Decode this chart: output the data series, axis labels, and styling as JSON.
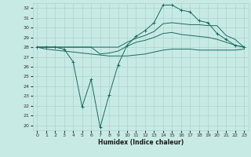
{
  "title": "",
  "xlabel": "Humidex (Indice chaleur)",
  "ylabel": "",
  "background_color": "#c8eae4",
  "grid_color": "#aad4ce",
  "line_color": "#1a6b60",
  "ylim": [
    19.5,
    32.5
  ],
  "xlim": [
    -0.5,
    23.5
  ],
  "yticks": [
    20,
    21,
    22,
    23,
    24,
    25,
    26,
    27,
    28,
    29,
    30,
    31,
    32
  ],
  "xticks": [
    0,
    1,
    2,
    3,
    4,
    5,
    6,
    7,
    8,
    9,
    10,
    11,
    12,
    13,
    14,
    15,
    16,
    17,
    18,
    19,
    20,
    21,
    22,
    23
  ],
  "curves": [
    {
      "x": [
        0,
        1,
        2,
        3,
        4,
        5,
        6,
        7,
        8,
        9,
        10,
        11,
        12,
        13,
        14,
        15,
        16,
        17,
        18,
        19,
        20,
        21,
        22,
        23
      ],
      "y": [
        28,
        28,
        28,
        27.8,
        26.5,
        21.9,
        24.7,
        19.8,
        23.1,
        26.2,
        28.2,
        29.1,
        29.7,
        30.5,
        32.3,
        32.3,
        31.8,
        31.6,
        30.7,
        30.5,
        29.4,
        28.8,
        28.2,
        28.0
      ],
      "marker": "+"
    },
    {
      "x": [
        0,
        1,
        2,
        3,
        4,
        5,
        6,
        7,
        8,
        9,
        10,
        11,
        12,
        13,
        14,
        15,
        16,
        17,
        18,
        19,
        20,
        21,
        22,
        23
      ],
      "y": [
        28,
        28,
        28,
        28,
        28,
        28,
        28,
        27.3,
        27.4,
        27.6,
        28.1,
        28.5,
        28.7,
        29.0,
        29.4,
        29.5,
        29.3,
        29.2,
        29.1,
        29.0,
        28.8,
        28.5,
        28.2,
        28.0
      ],
      "marker": null
    },
    {
      "x": [
        0,
        1,
        2,
        3,
        4,
        5,
        6,
        7,
        8,
        9,
        10,
        11,
        12,
        13,
        14,
        15,
        16,
        17,
        18,
        19,
        20,
        21,
        22,
        23
      ],
      "y": [
        28,
        27.8,
        27.7,
        27.6,
        27.5,
        27.4,
        27.3,
        27.2,
        27.1,
        27.1,
        27.1,
        27.2,
        27.3,
        27.5,
        27.7,
        27.8,
        27.8,
        27.8,
        27.7,
        27.7,
        27.7,
        27.7,
        27.7,
        27.8
      ],
      "marker": null
    },
    {
      "x": [
        0,
        1,
        2,
        3,
        4,
        5,
        6,
        7,
        8,
        9,
        10,
        11,
        12,
        13,
        14,
        15,
        16,
        17,
        18,
        19,
        20,
        21,
        22,
        23
      ],
      "y": [
        28,
        28,
        28,
        28,
        28,
        28,
        28,
        28,
        28,
        28,
        28.5,
        28.9,
        29.2,
        29.6,
        30.4,
        30.5,
        30.4,
        30.3,
        30.3,
        30.2,
        30.2,
        29.2,
        28.8,
        28.0
      ],
      "marker": null
    }
  ]
}
